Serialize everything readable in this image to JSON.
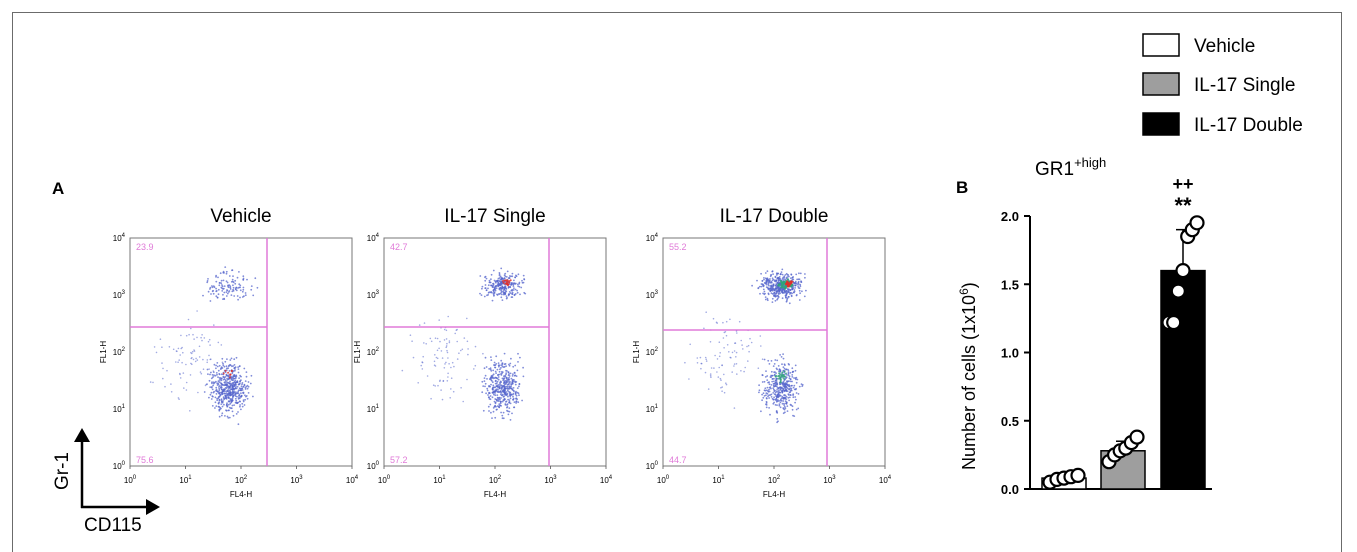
{
  "legend": [
    {
      "label": "Vehicle",
      "color": "#ffffff"
    },
    {
      "label": "IL-17 Single",
      "color": "#9e9e9e"
    },
    {
      "label": "IL-17 Double",
      "color": "#000000"
    }
  ],
  "panel_a": {
    "label": "A",
    "y_axis_name": "Gr-1",
    "x_axis_name": "CD115",
    "xlabel": "FL4-H",
    "ylabel": "FL1-H",
    "tick_labels": [
      "0",
      "1",
      "2",
      "3",
      "4"
    ],
    "plots": [
      {
        "title": "Vehicle",
        "upper_pct": "23.9",
        "lower_pct": "75.6"
      },
      {
        "title": "IL-17 Single",
        "upper_pct": "42.7",
        "lower_pct": "57.2"
      },
      {
        "title": "IL-17 Double",
        "upper_pct": "55.2",
        "lower_pct": "44.7"
      }
    ]
  },
  "colors": {
    "gate": "#e07ad8",
    "dot": "#5566cc",
    "hot": "#e0302a"
  },
  "chart_data": {
    "type": "bar",
    "label": "B",
    "title": "GR1",
    "title_sup": "+high",
    "categories": [
      "Vehicle",
      "IL-17 Single",
      "IL-17 Double"
    ],
    "values": [
      0.08,
      0.28,
      1.6
    ],
    "errors": [
      0.02,
      0.07,
      0.3
    ],
    "points": [
      [
        0.05,
        0.07,
        0.08,
        0.09,
        0.1
      ],
      [
        0.2,
        0.25,
        0.28,
        0.3,
        0.34,
        0.38
      ],
      [
        1.22,
        1.22,
        1.45,
        1.6,
        1.85,
        1.9,
        1.95
      ]
    ],
    "annotations": [
      "++",
      "**"
    ],
    "ylabel": "Number of cells (1x10",
    "ylabel_sup": "6",
    "ylabel_end": ")",
    "ylim": [
      0,
      2.0
    ],
    "yticks": [
      "0.0",
      "0.5",
      "1.0",
      "1.5",
      "2.0"
    ]
  }
}
